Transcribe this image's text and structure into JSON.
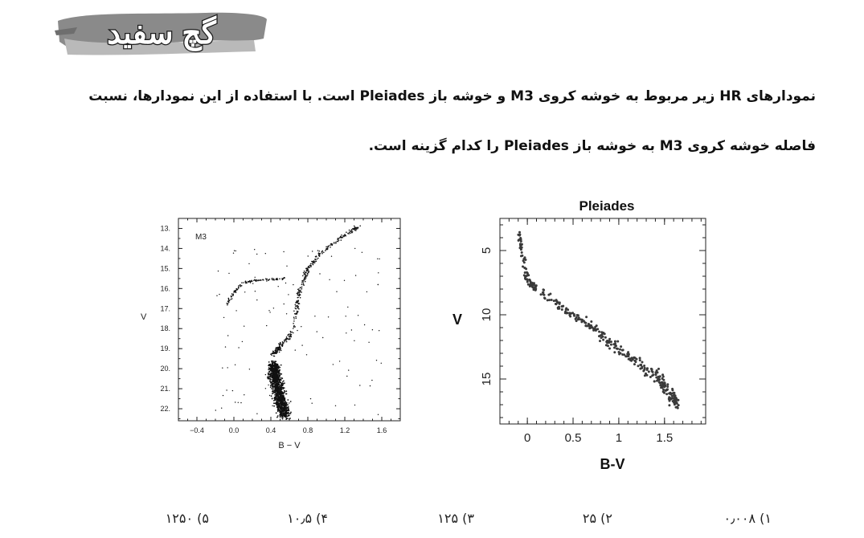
{
  "logo": {
    "text": "گچ سفید"
  },
  "question": {
    "line1": "نمودارهای HR زیر مربوط به خوشه کروی M3 و خوشه باز Pleiades است. با استفاده از این نمودارها، نسبت",
    "line2": "فاصله خوشه کروی M3 به خوشه باز Pleiades را کدام گزینه است."
  },
  "options": [
    {
      "label": "۱) ۰٫۰۰۸"
    },
    {
      "label": "۲) ۲۵"
    },
    {
      "label": "۳) ۱۲۵"
    },
    {
      "label": "۴) ۱۰٫۵"
    },
    {
      "label": "۵) ۱۲۵۰"
    }
  ],
  "chart_data": [
    {
      "type": "scatter",
      "title": "",
      "inset_label": "M3",
      "xlabel": "B − V",
      "ylabel": "V",
      "xlim": [
        -0.6,
        1.8
      ],
      "ylim": [
        22.6,
        12.5
      ],
      "x_ticks": [
        "−0.4",
        "0.0",
        "0.4",
        "0.8",
        "1.2",
        "1.6"
      ],
      "x_tick_values": [
        -0.4,
        0.0,
        0.4,
        0.8,
        1.2,
        1.6
      ],
      "y_ticks": [
        "13.",
        "14.",
        "15.",
        "16.",
        "17.",
        "18.",
        "19.",
        "20.",
        "21.",
        "22."
      ],
      "y_tick_values": [
        13,
        14,
        15,
        16,
        17,
        18,
        19,
        20,
        21,
        22
      ],
      "y_inverted": true,
      "point_color": "#111111",
      "features": {
        "main_sequence": [
          [
            0.55,
            22.4
          ],
          [
            0.5,
            21.5
          ],
          [
            0.45,
            20.5
          ],
          [
            0.43,
            19.8
          ]
        ],
        "turnoff": [
          0.42,
          19.3
        ],
        "subgiant_branch": [
          [
            0.42,
            19.3
          ],
          [
            0.5,
            18.9
          ],
          [
            0.62,
            18.3
          ]
        ],
        "red_giant_branch": [
          [
            0.62,
            18.3
          ],
          [
            0.68,
            17.0
          ],
          [
            0.72,
            16.0
          ],
          [
            0.8,
            15.0
          ],
          [
            0.95,
            14.2
          ],
          [
            1.15,
            13.5
          ],
          [
            1.35,
            12.9
          ]
        ],
        "horizontal_branch": [
          [
            -0.1,
            16.9
          ],
          [
            0.0,
            16.2
          ],
          [
            0.1,
            15.7
          ],
          [
            0.2,
            15.6
          ],
          [
            0.4,
            15.55
          ],
          [
            0.55,
            15.5
          ]
        ]
      }
    },
    {
      "type": "scatter",
      "title": "Pleiades",
      "xlabel": "B-V",
      "ylabel": "V",
      "xlim": [
        -0.3,
        1.95
      ],
      "ylim": [
        2.5,
        18.5
      ],
      "x_ticks": [
        "0",
        "0.5",
        "1",
        "1.5"
      ],
      "x_tick_values": [
        0,
        0.5,
        1,
        1.5
      ],
      "y_ticks": [
        "5",
        "10",
        "15"
      ],
      "y_tick_values": [
        5,
        10,
        15
      ],
      "y_inverted": true,
      "point_color": "#3a3a3a",
      "main_sequence": [
        [
          -0.1,
          3.5
        ],
        [
          -0.05,
          5.5
        ],
        [
          0.0,
          7.3
        ],
        [
          0.1,
          8.0
        ],
        [
          0.3,
          9.0
        ],
        [
          0.5,
          10.0
        ],
        [
          0.7,
          11.0
        ],
        [
          0.9,
          12.2
        ],
        [
          1.1,
          13.2
        ],
        [
          1.3,
          14.2
        ],
        [
          1.45,
          15.0
        ],
        [
          1.55,
          16.2
        ],
        [
          1.65,
          17.0
        ]
      ]
    }
  ]
}
